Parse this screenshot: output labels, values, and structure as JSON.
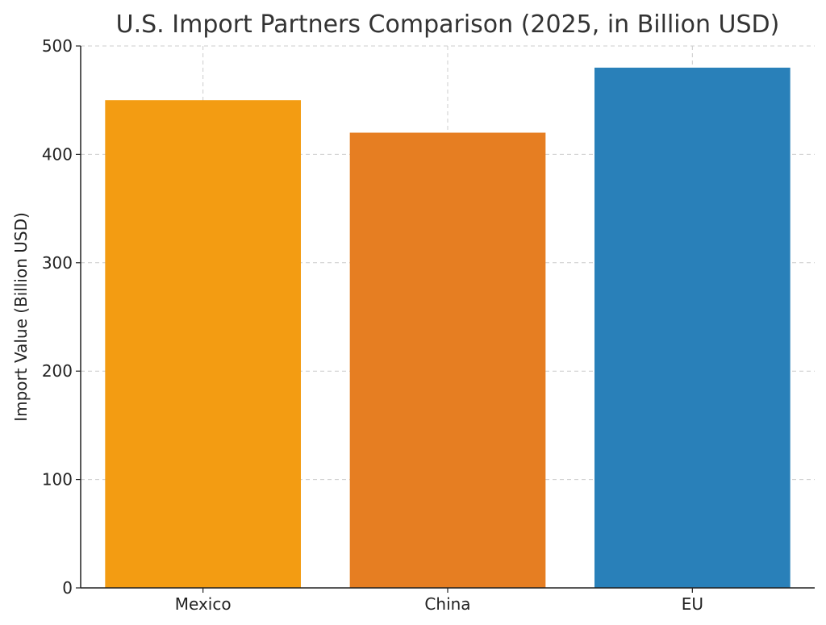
{
  "chart_data": {
    "type": "bar",
    "title": "U.S. Import Partners Comparison (2025, in Billion USD)",
    "xlabel": "",
    "ylabel": "Import Value (Billion USD)",
    "categories": [
      "Mexico",
      "China",
      "EU"
    ],
    "values": [
      450,
      420,
      480
    ],
    "colors": [
      "#f39c12",
      "#e67e22",
      "#2980b9"
    ],
    "ylim": [
      0,
      500
    ],
    "yticks": [
      0,
      100,
      200,
      300,
      400,
      500
    ],
    "grid": true
  }
}
